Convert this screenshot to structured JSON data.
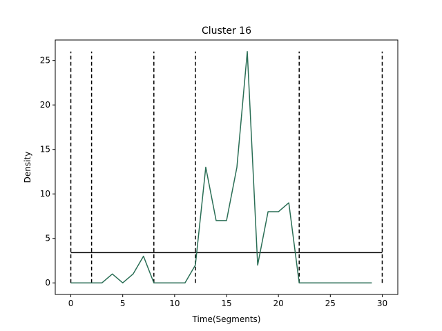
{
  "chart_data": {
    "type": "line",
    "title": "Cluster 16",
    "xlabel": "Time(Segments)",
    "ylabel": "Density",
    "xlim": [
      -1.5,
      31.5
    ],
    "ylim": [
      -1.3,
      27.3
    ],
    "xticks": [
      0,
      5,
      10,
      15,
      20,
      25,
      30
    ],
    "yticks": [
      0,
      5,
      10,
      15,
      20,
      25
    ],
    "grid": false,
    "series": [
      {
        "color": "#2a6e55",
        "x": [
          0,
          1,
          2,
          3,
          4,
          5,
          6,
          7,
          8,
          9,
          10,
          11,
          12,
          13,
          14,
          15,
          16,
          17,
          18,
          19,
          20,
          21,
          22,
          23,
          24,
          25,
          26,
          27,
          28,
          29
        ],
        "y": [
          0,
          0,
          0,
          0,
          1,
          0,
          1,
          3,
          0,
          0,
          0,
          0,
          2,
          13,
          7,
          7,
          13,
          26,
          2,
          8,
          8,
          9,
          0,
          0,
          0,
          0,
          0,
          0,
          0,
          0
        ]
      }
    ],
    "threshold": {
      "y": 3.4,
      "x_start": 0,
      "x_end": 30,
      "color": "#000000"
    },
    "boundaries": {
      "x": [
        0,
        2,
        8,
        12,
        22,
        30
      ],
      "y_top": 26,
      "y_bottom": 0,
      "style": "dashed",
      "color": "#000000"
    }
  }
}
